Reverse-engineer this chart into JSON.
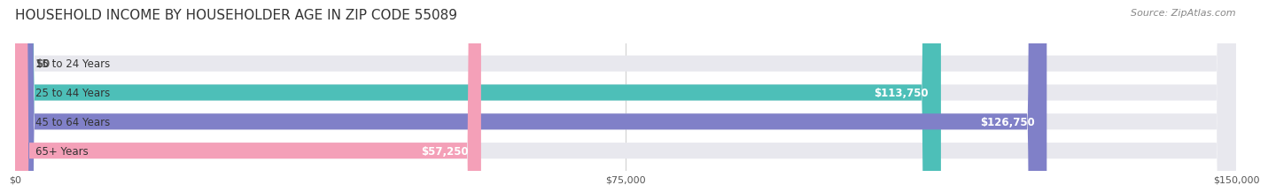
{
  "title": "HOUSEHOLD INCOME BY HOUSEHOLDER AGE IN ZIP CODE 55089",
  "source": "Source: ZipAtlas.com",
  "categories": [
    "15 to 24 Years",
    "25 to 44 Years",
    "45 to 64 Years",
    "65+ Years"
  ],
  "values": [
    0,
    113750,
    126750,
    57250
  ],
  "bar_colors": [
    "#c9a8d4",
    "#4dbfb8",
    "#8080c8",
    "#f4a0b8"
  ],
  "bar_track_color": "#e8e8ee",
  "value_labels": [
    "$0",
    "$113,750",
    "$126,750",
    "$57,250"
  ],
  "x_ticks": [
    0,
    75000,
    150000
  ],
  "x_tick_labels": [
    "$0",
    "$75,000",
    "$150,000"
  ],
  "xlim": [
    0,
    150000
  ],
  "background_color": "#ffffff",
  "title_fontsize": 11,
  "source_fontsize": 8,
  "bar_height": 0.55,
  "label_fontsize": 8.5,
  "value_fontsize": 8.5
}
